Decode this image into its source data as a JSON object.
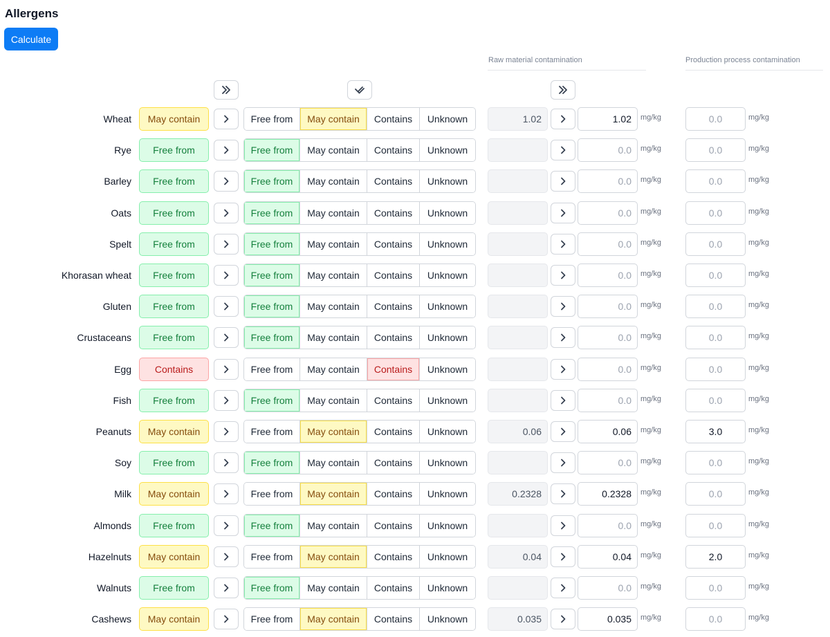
{
  "page_title": "Allergens",
  "calculate_label": "Calculate",
  "raw_material_header": "Raw material contamination",
  "production_header": "Production process contamination",
  "options": [
    "Free from",
    "May contain",
    "Contains",
    "Unknown"
  ],
  "status_labels": {
    "free": "Free from",
    "may": "May contain",
    "contains": "Contains"
  },
  "colors": {
    "accent": "#0d7cf5",
    "free_bg": "#dcfce7",
    "free_text": "#15803d",
    "may_bg": "#fef9c3",
    "may_text": "#854d0e",
    "contains_bg": "#fee2e2",
    "contains_text": "#b91c1c"
  },
  "icons": {
    "header_copy_status": "double-chevron-right-icon",
    "header_check": "double-check-icon",
    "header_copy_raw": "double-chevron-right-icon",
    "row_copy": "chevron-right-icon"
  },
  "allergens": [
    {
      "name": "Wheat",
      "status": "may",
      "raw": "1.02",
      "value": "1.02",
      "process": "0.0",
      "process_set": false,
      "unit": "mg/kg",
      "process_unit": "mg/kg"
    },
    {
      "name": "Rye",
      "status": "free",
      "raw": "",
      "value": "0.0",
      "process": "0.0",
      "process_set": false,
      "unit": "mg/kg",
      "process_unit": "mg/kg"
    },
    {
      "name": "Barley",
      "status": "free",
      "raw": "",
      "value": "0.0",
      "process": "0.0",
      "process_set": false,
      "unit": "mg/kg",
      "process_unit": "mg/kg"
    },
    {
      "name": "Oats",
      "status": "free",
      "raw": "",
      "value": "0.0",
      "process": "0.0",
      "process_set": false,
      "unit": "mg/kg",
      "process_unit": "mg/kg"
    },
    {
      "name": "Spelt",
      "status": "free",
      "raw": "",
      "value": "0.0",
      "process": "0.0",
      "process_set": false,
      "unit": "mg/kg",
      "process_unit": "mg/kg"
    },
    {
      "name": "Khorasan wheat",
      "status": "free",
      "raw": "",
      "value": "0.0",
      "process": "0.0",
      "process_set": false,
      "unit": "mg/kg",
      "process_unit": "mg/kg"
    },
    {
      "name": "Gluten",
      "status": "free",
      "raw": "",
      "value": "0.0",
      "process": "0.0",
      "process_set": false,
      "unit": "mg/kg",
      "process_unit": "mg/kg"
    },
    {
      "name": "Crustaceans",
      "status": "free",
      "raw": "",
      "value": "0.0",
      "process": "0.0",
      "process_set": false,
      "unit": "mg/kg",
      "process_unit": "mg/kg"
    },
    {
      "name": "Egg",
      "status": "contains",
      "raw": "",
      "value": "0.0",
      "process": "0.0",
      "process_set": false,
      "unit": "mg/kg",
      "process_unit": "mg/kg"
    },
    {
      "name": "Fish",
      "status": "free",
      "raw": "",
      "value": "0.0",
      "process": "0.0",
      "process_set": false,
      "unit": "mg/kg",
      "process_unit": "mg/kg"
    },
    {
      "name": "Peanuts",
      "status": "may",
      "raw": "0.06",
      "value": "0.06",
      "process": "3.0",
      "process_set": true,
      "unit": "mg/kg",
      "process_unit": "mg/kg"
    },
    {
      "name": "Soy",
      "status": "free",
      "raw": "",
      "value": "0.0",
      "process": "0.0",
      "process_set": false,
      "unit": "mg/kg",
      "process_unit": "mg/kg"
    },
    {
      "name": "Milk",
      "status": "may",
      "raw": "0.2328",
      "value": "0.2328",
      "process": "0.0",
      "process_set": false,
      "unit": "mg/kg",
      "process_unit": "mg/kg"
    },
    {
      "name": "Almonds",
      "status": "free",
      "raw": "",
      "value": "0.0",
      "process": "0.0",
      "process_set": false,
      "unit": "mg/kg",
      "process_unit": "mg/kg"
    },
    {
      "name": "Hazelnuts",
      "status": "may",
      "raw": "0.04",
      "value": "0.04",
      "process": "2.0",
      "process_set": true,
      "unit": "mg/kg",
      "process_unit": "mg/kg"
    },
    {
      "name": "Walnuts",
      "status": "free",
      "raw": "",
      "value": "0.0",
      "process": "0.0",
      "process_set": false,
      "unit": "mg/kg",
      "process_unit": "mg/kg"
    },
    {
      "name": "Cashews",
      "status": "may",
      "raw": "0.035",
      "value": "0.035",
      "process": "0.0",
      "process_set": false,
      "unit": "mg/kg",
      "process_unit": "mg/kg"
    }
  ]
}
